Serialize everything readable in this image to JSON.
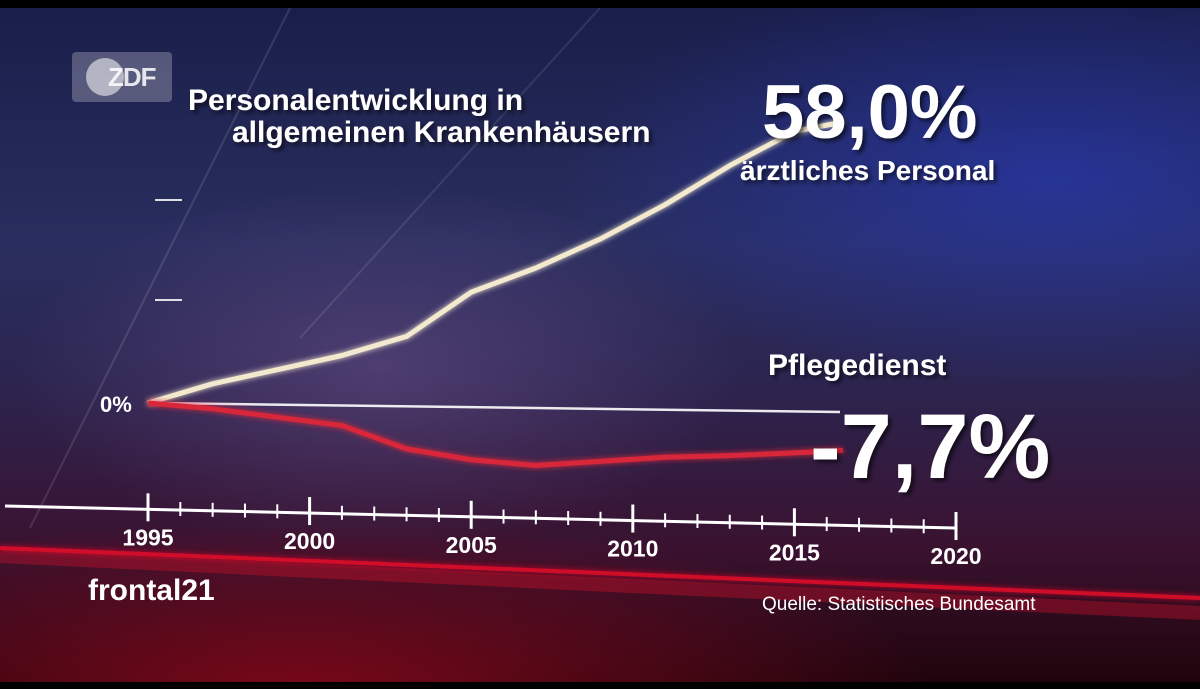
{
  "broadcaster_logo": "ZDF",
  "show_logo": "frontal21",
  "source": "Quelle: Statistisches Bundesamt",
  "colors": {
    "aerztliches_line": "#f3e9cf",
    "pflege_line": "#d8263a",
    "axis": "#ffffff",
    "accent_red": "#e0102a"
  },
  "chart_data": {
    "type": "line",
    "title": "Personalentwicklung in allgemeinen Krankenhäusern",
    "x_ticks": [
      "1995",
      "2000",
      "2005",
      "2010",
      "2015",
      "2020"
    ],
    "y_label_zero": "0%",
    "xlim": [
      1995,
      2020
    ],
    "ylim": [
      -15,
      65
    ],
    "series": [
      {
        "name": "ärztliches Personal",
        "end_value_label": "58,0%",
        "x": [
          1995,
          1997,
          1999,
          2001,
          2003,
          2005,
          2007,
          2009,
          2011,
          2013,
          2015,
          2016.5
        ],
        "values": [
          0,
          4,
          7,
          10,
          14,
          23,
          28,
          34,
          41,
          49,
          56,
          58
        ]
      },
      {
        "name": "Pflegedienst",
        "end_value_label": "-7,7%",
        "x": [
          1995,
          1997,
          1999,
          2001,
          2003,
          2005,
          2007,
          2009,
          2011,
          2013,
          2015,
          2016.5
        ],
        "values": [
          0,
          -1,
          -2.5,
          -4,
          -8.5,
          -10.5,
          -11.5,
          -10.5,
          -9.5,
          -9,
          -8.3,
          -7.7
        ]
      }
    ]
  }
}
